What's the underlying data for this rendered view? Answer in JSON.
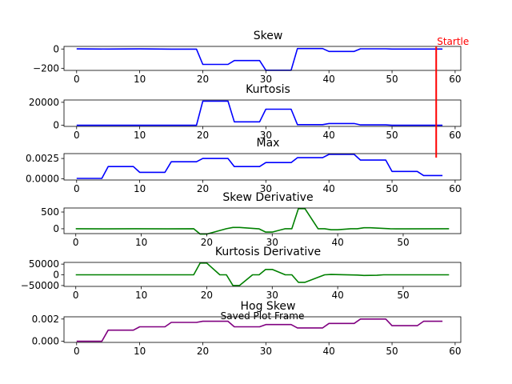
{
  "figure": {
    "overlay_text": "Saved Plot Frame",
    "marker_label": "Startle",
    "marker_x": 57
  },
  "chart_data": [
    {
      "type": "line",
      "title": "Skew",
      "color": "#0000ff",
      "xlim": [
        -2,
        60.9
      ],
      "ylim": [
        -222,
        27
      ],
      "xticks": [
        0,
        10,
        20,
        30,
        40,
        50,
        60
      ],
      "yticks": [
        0,
        -200
      ],
      "ytick_labels": [
        "0",
        "−200"
      ],
      "x": [
        0,
        5,
        10,
        15,
        19,
        20,
        22,
        24,
        25,
        27,
        29,
        30,
        33,
        34,
        35,
        38,
        39,
        40,
        43,
        44,
        45,
        49,
        50,
        58
      ],
      "y": [
        1,
        0,
        1,
        -1,
        -1,
        -160,
        -160,
        -160,
        -120,
        -120,
        -120,
        -220,
        -220,
        -220,
        5,
        5,
        5,
        -25,
        -25,
        -25,
        2,
        2,
        0,
        0
      ]
    },
    {
      "type": "line",
      "title": "Kurtosis",
      "color": "#0000ff",
      "xlim": [
        -2,
        60.9
      ],
      "ylim": [
        -1000,
        22000
      ],
      "xticks": [
        0,
        10,
        20,
        30,
        40,
        50,
        60
      ],
      "yticks": [
        0,
        20000
      ],
      "ytick_labels": [
        "0",
        "20000"
      ],
      "x": [
        0,
        19,
        20,
        24,
        25,
        29,
        30,
        34,
        35,
        39,
        40,
        44,
        45,
        49,
        50,
        58
      ],
      "y": [
        0,
        0,
        21000,
        21000,
        3000,
        3000,
        14000,
        14000,
        500,
        500,
        1500,
        1500,
        300,
        300,
        0,
        0
      ]
    },
    {
      "type": "line",
      "title": "Max",
      "color": "#0000ff",
      "xlim": [
        -2,
        60.9
      ],
      "ylim": [
        -0.00015,
        0.0031
      ],
      "xticks": [
        0,
        10,
        20,
        30,
        40,
        50,
        60
      ],
      "yticks": [
        0,
        0.0025
      ],
      "ytick_labels": [
        "0.0000",
        "0.0025"
      ],
      "x": [
        0,
        4,
        5,
        9,
        10,
        14,
        15,
        19,
        20,
        24,
        25,
        29,
        30,
        34,
        35,
        39,
        40,
        44,
        45,
        49,
        50,
        54,
        55,
        58
      ],
      "y": [
        5e-05,
        5e-05,
        0.0015,
        0.0015,
        0.0008,
        0.0008,
        0.0021,
        0.0021,
        0.0025,
        0.0025,
        0.0015,
        0.0015,
        0.002,
        0.002,
        0.0026,
        0.0026,
        0.003,
        0.003,
        0.0023,
        0.0023,
        0.0009,
        0.0009,
        0.0004,
        0.0004
      ]
    },
    {
      "type": "line",
      "title": "Skew Derivative",
      "color": "#008000",
      "xlim": [
        -1.8,
        58.8
      ],
      "ylim": [
        -145,
        620
      ],
      "xticks": [
        0,
        10,
        20,
        30,
        40,
        50
      ],
      "yticks": [
        0,
        500
      ],
      "ytick_labels": [
        "0",
        "500"
      ],
      "x": [
        0,
        5,
        9,
        14,
        18,
        19,
        20,
        23,
        24,
        25,
        28,
        29,
        30,
        32,
        33,
        34,
        35,
        37,
        38,
        39,
        40,
        42,
        43,
        44,
        45,
        48,
        49,
        57
      ],
      "y": [
        0,
        -5,
        0,
        -3,
        0,
        -160,
        -160,
        0,
        40,
        40,
        -5,
        -100,
        -100,
        0,
        0,
        600,
        600,
        0,
        0,
        -30,
        -30,
        0,
        0,
        30,
        30,
        0,
        -3,
        0
      ]
    },
    {
      "type": "line",
      "title": "Kurtosis Derivative",
      "color": "#008000",
      "xlim": [
        -1.8,
        58.8
      ],
      "ylim": [
        -54000,
        58000
      ],
      "xticks": [
        0,
        10,
        20,
        30,
        40,
        50
      ],
      "yticks": [
        50000,
        0,
        -50000
      ],
      "ytick_labels": [
        "50000",
        "0",
        "−50000"
      ],
      "x": [
        0,
        18,
        19,
        20,
        22,
        23,
        24,
        25,
        27,
        28,
        29,
        30,
        32,
        33,
        34,
        35,
        38,
        39,
        43,
        44,
        46,
        47,
        57
      ],
      "y": [
        0,
        0,
        55000,
        55000,
        0,
        0,
        -50000,
        -50000,
        0,
        0,
        25000,
        25000,
        0,
        0,
        -35000,
        -35000,
        0,
        1500,
        -1000,
        -3000,
        -2000,
        0,
        0
      ]
    },
    {
      "type": "line",
      "title": "Hog Skew",
      "color": "#800080",
      "xlim": [
        -2,
        60.9
      ],
      "ylim": [
        -0.0001,
        0.0022
      ],
      "xticks": [
        0,
        10,
        20,
        30,
        40,
        50,
        60
      ],
      "yticks": [
        0,
        0.002
      ],
      "ytick_labels": [
        "0.000",
        "0.002"
      ],
      "x": [
        0,
        4,
        5,
        9,
        10,
        14,
        15,
        19,
        20,
        24,
        25,
        29,
        30,
        34,
        35,
        39,
        40,
        44,
        45,
        49,
        50,
        54,
        55,
        58
      ],
      "y": [
        0,
        0,
        0.001,
        0.001,
        0.0013,
        0.0013,
        0.0017,
        0.0017,
        0.0018,
        0.0018,
        0.0013,
        0.0013,
        0.0015,
        0.0015,
        0.0012,
        0.0012,
        0.0016,
        0.0016,
        0.002,
        0.002,
        0.0014,
        0.0014,
        0.0018,
        0.0018
      ]
    }
  ]
}
